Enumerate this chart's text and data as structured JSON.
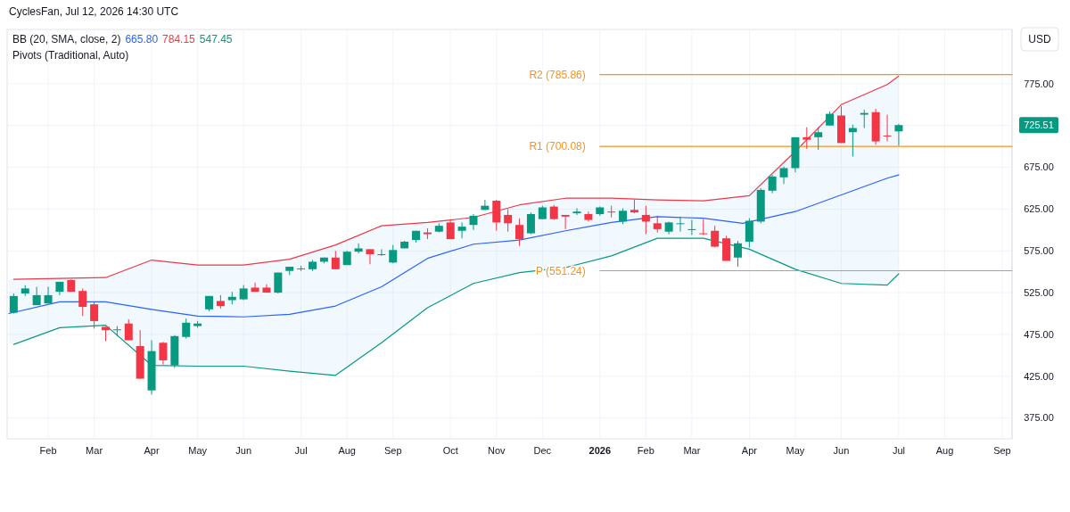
{
  "chart_data": {
    "type": "candlestick",
    "title": "CyclesFan, Jul 12, 2026 14:30 UTC",
    "x": [
      "2025-01-13",
      "2025-01-20",
      "2025-01-27",
      "2025-02-03",
      "2025-02-10",
      "2025-02-17",
      "2025-02-24",
      "2025-03-03",
      "2025-03-10",
      "2025-03-17",
      "2025-03-24",
      "2025-03-31",
      "2025-04-07",
      "2025-04-14",
      "2025-04-21",
      "2025-04-28",
      "2025-05-05",
      "2025-05-12",
      "2025-05-19",
      "2025-05-26",
      "2025-06-02",
      "2025-06-09",
      "2025-06-16",
      "2025-06-23",
      "2025-06-30",
      "2025-07-07",
      "2025-07-14",
      "2025-07-21",
      "2025-07-28",
      "2025-08-04",
      "2025-08-11",
      "2025-08-18",
      "2025-08-25",
      "2025-09-01",
      "2025-09-08",
      "2025-09-15",
      "2025-09-22",
      "2025-09-29",
      "2025-10-06",
      "2025-10-13",
      "2025-10-20",
      "2025-10-27",
      "2025-11-03",
      "2025-11-10",
      "2025-11-17",
      "2025-11-24",
      "2025-12-01",
      "2025-12-08",
      "2025-12-15",
      "2025-12-22",
      "2025-12-29",
      "2026-01-05",
      "2026-01-12",
      "2026-01-19",
      "2026-01-26",
      "2026-02-02",
      "2026-02-09",
      "2026-02-16",
      "2026-02-23",
      "2026-03-02",
      "2026-03-09",
      "2026-03-16",
      "2026-03-23",
      "2026-03-30",
      "2026-04-06",
      "2026-04-13",
      "2026-04-20",
      "2026-04-27",
      "2026-05-04",
      "2026-05-11",
      "2026-05-18",
      "2026-05-25",
      "2026-06-01",
      "2026-06-08",
      "2026-06-15",
      "2026-06-22",
      "2026-06-29",
      "2026-07-06"
    ],
    "ohlc": [
      [
        501,
        524,
        500,
        521
      ],
      [
        524,
        534,
        521,
        530
      ],
      [
        510,
        532,
        510,
        522
      ],
      [
        512,
        532,
        512,
        522
      ],
      [
        526,
        538,
        522,
        538
      ],
      [
        540,
        541,
        526,
        526
      ],
      [
        527,
        530,
        497,
        508
      ],
      [
        511,
        514,
        482,
        491
      ],
      [
        484,
        484,
        467,
        480
      ],
      [
        480,
        485,
        473,
        481
      ],
      [
        488,
        493,
        468,
        468
      ],
      [
        461,
        480,
        422,
        422
      ],
      [
        408,
        468,
        403,
        455
      ],
      [
        465,
        466,
        439,
        444
      ],
      [
        438,
        474,
        435,
        473
      ],
      [
        472,
        494,
        470,
        489
      ],
      [
        485,
        491,
        483,
        488
      ],
      [
        505,
        521,
        503,
        521
      ],
      [
        515,
        522,
        506,
        509
      ],
      [
        516,
        526,
        511,
        520
      ],
      [
        517,
        534,
        516,
        530
      ],
      [
        531,
        537,
        526,
        526
      ],
      [
        531,
        535,
        525,
        525
      ],
      [
        525,
        549,
        524,
        549
      ],
      [
        551,
        556,
        546,
        556
      ],
      [
        553,
        557,
        551,
        554
      ],
      [
        553,
        564,
        551,
        562
      ],
      [
        562,
        567,
        560,
        567
      ],
      [
        567,
        575,
        553,
        553
      ],
      [
        558,
        575,
        558,
        574
      ],
      [
        574,
        584,
        572,
        578
      ],
      [
        577,
        577,
        559,
        571
      ],
      [
        570,
        577,
        569,
        571
      ],
      [
        561,
        582,
        560,
        576
      ],
      [
        578,
        587,
        578,
        586
      ],
      [
        588,
        599,
        585,
        599
      ],
      [
        597,
        602,
        589,
        595
      ],
      [
        598,
        608,
        597,
        605
      ],
      [
        609,
        613,
        589,
        589
      ],
      [
        599,
        609,
        590,
        604
      ],
      [
        606,
        619,
        600,
        617
      ],
      [
        624,
        636,
        624,
        629
      ],
      [
        635,
        636,
        599,
        609
      ],
      [
        618,
        625,
        598,
        608
      ],
      [
        606,
        614,
        581,
        589
      ],
      [
        596,
        621,
        595,
        619
      ],
      [
        613,
        629,
        613,
        627
      ],
      [
        628,
        630,
        612,
        613
      ],
      [
        618,
        618,
        601,
        616
      ],
      [
        620,
        626,
        618,
        622
      ],
      [
        619,
        622,
        610,
        612
      ],
      [
        619,
        628,
        617,
        627
      ],
      [
        622,
        629,
        615,
        621
      ],
      [
        610,
        626,
        607,
        623
      ],
      [
        624,
        636,
        620,
        621
      ],
      [
        618,
        629,
        595,
        610
      ],
      [
        608,
        617,
        597,
        601
      ],
      [
        598,
        610,
        595,
        609
      ],
      [
        607,
        616,
        598,
        608
      ],
      [
        600,
        612,
        594,
        601
      ],
      [
        596,
        613,
        594,
        595
      ],
      [
        599,
        605,
        579,
        580
      ],
      [
        590,
        593,
        563,
        563
      ],
      [
        567,
        587,
        556,
        584
      ],
      [
        586,
        614,
        579,
        611
      ],
      [
        610,
        650,
        608,
        648
      ],
      [
        647,
        666,
        644,
        664
      ],
      [
        663,
        676,
        655,
        674
      ],
      [
        674,
        711,
        669,
        711
      ],
      [
        711,
        723,
        697,
        708
      ],
      [
        711,
        723,
        696,
        717
      ],
      [
        725,
        742,
        725,
        739
      ],
      [
        737,
        748,
        704,
        704
      ],
      [
        717,
        726,
        688,
        722
      ],
      [
        738,
        744,
        722,
        740
      ],
      [
        741,
        745,
        702,
        706
      ],
      [
        713,
        738,
        706,
        712
      ],
      [
        718,
        727,
        701,
        725.51
      ]
    ],
    "colors": [
      "#089981",
      "#089981",
      "#089981",
      "#089981",
      "#089981",
      "#f23645",
      "#f23645",
      "#f23645",
      "#f23645",
      "#089981",
      "#f23645",
      "#f23645",
      "#089981",
      "#f23645",
      "#089981",
      "#089981",
      "#089981",
      "#089981",
      "#f23645",
      "#089981",
      "#089981",
      "#f23645",
      "#f23645",
      "#089981",
      "#089981",
      "#089981",
      "#089981",
      "#089981",
      "#f23645",
      "#089981",
      "#089981",
      "#f23645",
      "#089981",
      "#089981",
      "#089981",
      "#089981",
      "#f23645",
      "#089981",
      "#f23645",
      "#089981",
      "#089981",
      "#089981",
      "#f23645",
      "#f23645",
      "#f23645",
      "#089981",
      "#089981",
      "#f23645",
      "#f23645",
      "#089981",
      "#f23645",
      "#089981",
      "#f23645",
      "#089981",
      "#f23645",
      "#f23645",
      "#f23645",
      "#089981",
      "#089981",
      "#089981",
      "#f23645",
      "#f23645",
      "#f23645",
      "#089981",
      "#089981",
      "#089981",
      "#089981",
      "#089981",
      "#089981",
      "#f23645",
      "#089981",
      "#089981",
      "#f23645",
      "#089981",
      "#089981",
      "#f23645",
      "#f23645",
      "#089981"
    ],
    "series": [
      {
        "type": "line",
        "color": "#f23645",
        "x": [
          "2025-01-13",
          "2025-02-10",
          "2025-03-10",
          "2025-04-07",
          "2025-05-05",
          "2025-06-02",
          "2025-06-30",
          "2025-07-28",
          "2025-08-25",
          "2025-09-22",
          "2025-10-20",
          "2025-11-17",
          "2025-12-15",
          "2026-01-12",
          "2026-02-09",
          "2026-03-09",
          "2026-04-06",
          "2026-05-04",
          "2026-06-01",
          "2026-06-29",
          "2026-07-06"
        ],
        "values": [
          541,
          542,
          543,
          564,
          558,
          558,
          565,
          582,
          605,
          609,
          615,
          630,
          638,
          638,
          636,
          635,
          641,
          694,
          750,
          774,
          784.15
        ]
      },
      {
        "type": "line",
        "color": "#2962ff",
        "x": [
          "2025-01-10",
          "2025-02-10",
          "2025-03-10",
          "2025-04-07",
          "2025-05-05",
          "2025-06-02",
          "2025-06-30",
          "2025-07-28",
          "2025-08-25",
          "2025-09-22",
          "2025-10-20",
          "2025-11-17",
          "2025-12-15",
          "2026-01-12",
          "2026-02-09",
          "2026-03-09",
          "2026-04-02",
          "2026-05-04",
          "2026-06-01",
          "2026-06-29",
          "2026-07-06"
        ],
        "values": [
          500,
          514,
          514,
          505,
          497,
          496,
          499,
          509,
          532,
          566,
          583,
          588,
          599,
          609,
          616,
          614,
          608,
          622,
          642,
          662,
          665.8
        ],
        "lower": [
          463,
          483,
          486,
          438,
          437,
          437,
          431,
          426,
          465,
          507,
          536,
          549,
          555,
          569,
          590,
          590,
          577,
          553,
          536,
          534,
          547.45
        ],
        "upper": [
          541,
          542,
          543,
          564,
          558,
          558,
          565,
          582,
          605,
          609,
          615,
          630,
          638,
          638,
          636,
          635,
          641,
          694,
          750,
          774,
          784.15
        ]
      },
      {
        "type": "line",
        "color": "#089981",
        "x": [
          "2025-01-13",
          "2025-02-10",
          "2025-03-10",
          "2025-04-07",
          "2025-05-05",
          "2025-06-02",
          "2025-06-30",
          "2025-07-28",
          "2025-08-25",
          "2025-09-22",
          "2025-10-20",
          "2025-11-17",
          "2025-12-15",
          "2026-01-12",
          "2026-02-09",
          "2026-03-09",
          "2026-04-06",
          "2026-05-04",
          "2026-06-01",
          "2026-06-29",
          "2026-07-06"
        ],
        "values": [
          463,
          483,
          486,
          438,
          437,
          437,
          431,
          426,
          465,
          507,
          536,
          549,
          555,
          569,
          590,
          590,
          577,
          553,
          536,
          534,
          547.45
        ]
      },
      {
        "type": "line",
        "name": "R2 (785.86)",
        "color": "#f7931a",
        "x": [
          "2026-01-05",
          "2026-09-13"
        ],
        "values": [
          785.86,
          785.86
        ]
      },
      {
        "type": "line",
        "name": "R1 (700.08)",
        "color": "#f7931a",
        "x": [
          "2026-01-05",
          "2026-09-13"
        ],
        "values": [
          700.08,
          700.08
        ]
      },
      {
        "type": "line",
        "name": "P (551.24)",
        "color": "#f7931a",
        "x": [
          "2026-01-05",
          "2026-09-13"
        ],
        "values": [
          551.24,
          551.24
        ]
      }
    ],
    "annotations": [
      "BB (20, SMA, close, 2)",
      "665.80",
      "784.15",
      "547.45",
      "Pivots (Traditional, Auto)",
      "USD",
      "725.51"
    ],
    "xlim": [
      "2025-01-09",
      "2026-09-13"
    ],
    "xticks": [
      {
        "value": "2025-02-03",
        "label": "Feb"
      },
      {
        "value": "2025-03-03",
        "label": "Mar"
      },
      {
        "value": "2025-04-07",
        "label": "Apr"
      },
      {
        "value": "2025-05-05",
        "label": "May"
      },
      {
        "value": "2025-06-02",
        "label": "Jun"
      },
      {
        "value": "2025-07-07",
        "label": "Jul"
      },
      {
        "value": "2025-08-04",
        "label": "Aug"
      },
      {
        "value": "2025-09-01",
        "label": "Sep"
      },
      {
        "value": "2025-10-06",
        "label": "Oct"
      },
      {
        "value": "2025-11-03",
        "label": "Nov"
      },
      {
        "value": "2025-12-01",
        "label": "Dec"
      },
      {
        "value": "2026-01-05",
        "label": "2026"
      },
      {
        "value": "2026-02-02",
        "label": "Feb"
      },
      {
        "value": "2026-03-02",
        "label": "Mar"
      },
      {
        "value": "2026-04-06",
        "label": "Apr"
      },
      {
        "value": "2026-05-04",
        "label": "May"
      },
      {
        "value": "2026-06-01",
        "label": "Jun"
      },
      {
        "value": "2026-07-06",
        "label": "Jul"
      },
      {
        "value": "2026-08-03",
        "label": "Aug"
      },
      {
        "value": "2026-09-07",
        "label": "Sep"
      }
    ],
    "ylim": [
      350,
      840
    ],
    "yticks": [
      {
        "value": 375,
        "label": "375.00"
      },
      {
        "value": 425,
        "label": "425.00"
      },
      {
        "value": 475,
        "label": "475.00"
      },
      {
        "value": 525,
        "label": "525.00"
      },
      {
        "value": 575,
        "label": "575.00"
      },
      {
        "value": 625,
        "label": "625.00"
      },
      {
        "value": 675,
        "label": "675.00"
      },
      {
        "value": 725,
        "label": null
      },
      {
        "value": 775,
        "label": "775.00"
      }
    ],
    "grid": true
  }
}
